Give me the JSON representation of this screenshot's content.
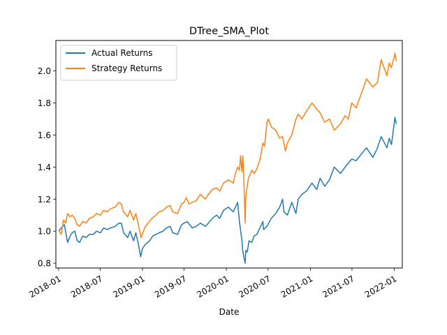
{
  "chart_data": {
    "type": "line",
    "title": "DTree_SMA_Plot",
    "xlabel": "Date",
    "ylabel": "",
    "x_type": "date",
    "xlim": [
      "2017-12-20",
      "2022-02-05"
    ],
    "ylim": [
      0.77,
      2.19
    ],
    "x_ticks": [
      "2018-01-01",
      "2018-07-01",
      "2019-01-01",
      "2019-07-01",
      "2020-01-01",
      "2020-07-01",
      "2021-01-01",
      "2021-07-01",
      "2022-01-01"
    ],
    "x_tick_labels": [
      "2018-01",
      "2018-07",
      "2019-01",
      "2019-07",
      "2020-01",
      "2020-07",
      "2021-01",
      "2021-07",
      "2022-01"
    ],
    "y_ticks": [
      0.8,
      1.0,
      1.2,
      1.4,
      1.6,
      1.8,
      2.0
    ],
    "y_tick_labels": [
      "0.8",
      "1.0",
      "1.2",
      "1.4",
      "1.6",
      "1.8",
      "2.0"
    ],
    "grid": false,
    "legend_position": "top-left",
    "series": [
      {
        "name": "Actual Returns",
        "color": "#1f77b4",
        "points": [
          [
            "2018-01-02",
            1.0
          ],
          [
            "2018-01-12",
            1.02
          ],
          [
            "2018-01-26",
            1.04
          ],
          [
            "2018-02-05",
            0.96
          ],
          [
            "2018-02-09",
            0.93
          ],
          [
            "2018-02-20",
            0.97
          ],
          [
            "2018-03-01",
            0.99
          ],
          [
            "2018-03-12",
            1.0
          ],
          [
            "2018-03-23",
            0.94
          ],
          [
            "2018-04-02",
            0.93
          ],
          [
            "2018-04-16",
            0.97
          ],
          [
            "2018-05-01",
            0.96
          ],
          [
            "2018-05-15",
            0.98
          ],
          [
            "2018-06-01",
            0.98
          ],
          [
            "2018-06-15",
            1.0
          ],
          [
            "2018-07-02",
            0.99
          ],
          [
            "2018-07-16",
            1.02
          ],
          [
            "2018-08-01",
            1.01
          ],
          [
            "2018-08-15",
            1.02
          ],
          [
            "2018-09-04",
            1.03
          ],
          [
            "2018-09-20",
            1.05
          ],
          [
            "2018-10-01",
            1.05
          ],
          [
            "2018-10-11",
            0.99
          ],
          [
            "2018-10-29",
            0.96
          ],
          [
            "2018-11-08",
            1.0
          ],
          [
            "2018-11-23",
            0.94
          ],
          [
            "2018-12-03",
            0.99
          ],
          [
            "2018-12-14",
            0.92
          ],
          [
            "2018-12-24",
            0.84
          ],
          [
            "2018-12-31",
            0.89
          ],
          [
            "2019-01-15",
            0.92
          ],
          [
            "2019-02-01",
            0.94
          ],
          [
            "2019-02-15",
            0.97
          ],
          [
            "2019-03-01",
            0.98
          ],
          [
            "2019-03-15",
            0.99
          ],
          [
            "2019-04-01",
            1.0
          ],
          [
            "2019-04-15",
            1.02
          ],
          [
            "2019-05-01",
            1.03
          ],
          [
            "2019-05-13",
            0.99
          ],
          [
            "2019-06-03",
            0.98
          ],
          [
            "2019-06-20",
            1.04
          ],
          [
            "2019-07-01",
            1.05
          ],
          [
            "2019-07-15",
            1.06
          ],
          [
            "2019-08-05",
            1.02
          ],
          [
            "2019-08-23",
            1.03
          ],
          [
            "2019-09-10",
            1.05
          ],
          [
            "2019-10-02",
            1.03
          ],
          [
            "2019-10-15",
            1.05
          ],
          [
            "2019-11-01",
            1.08
          ],
          [
            "2019-11-20",
            1.1
          ],
          [
            "2019-12-03",
            1.08
          ],
          [
            "2019-12-20",
            1.13
          ],
          [
            "2020-01-10",
            1.15
          ],
          [
            "2020-01-31",
            1.12
          ],
          [
            "2020-02-19",
            1.18
          ],
          [
            "2020-02-27",
            1.06
          ],
          [
            "2020-03-09",
            0.94
          ],
          [
            "2020-03-12",
            0.88
          ],
          [
            "2020-03-16",
            0.85
          ],
          [
            "2020-03-23",
            0.8
          ],
          [
            "2020-03-26",
            0.88
          ],
          [
            "2020-04-01",
            0.87
          ],
          [
            "2020-04-09",
            0.94
          ],
          [
            "2020-04-21",
            0.93
          ],
          [
            "2020-05-01",
            0.97
          ],
          [
            "2020-05-13",
            0.98
          ],
          [
            "2020-06-08",
            1.06
          ],
          [
            "2020-06-11",
            1.01
          ],
          [
            "2020-06-26",
            1.03
          ],
          [
            "2020-07-15",
            1.08
          ],
          [
            "2020-08-03",
            1.11
          ],
          [
            "2020-08-20",
            1.15
          ],
          [
            "2020-09-02",
            1.2
          ],
          [
            "2020-09-08",
            1.12
          ],
          [
            "2020-09-23",
            1.1
          ],
          [
            "2020-10-12",
            1.18
          ],
          [
            "2020-10-30",
            1.11
          ],
          [
            "2020-11-09",
            1.2
          ],
          [
            "2020-11-25",
            1.23
          ],
          [
            "2020-12-15",
            1.25
          ],
          [
            "2021-01-08",
            1.3
          ],
          [
            "2021-01-29",
            1.26
          ],
          [
            "2021-02-12",
            1.33
          ],
          [
            "2021-03-04",
            1.28
          ],
          [
            "2021-03-25",
            1.32
          ],
          [
            "2021-04-15",
            1.4
          ],
          [
            "2021-05-12",
            1.36
          ],
          [
            "2021-06-01",
            1.4
          ],
          [
            "2021-06-30",
            1.45
          ],
          [
            "2021-07-19",
            1.44
          ],
          [
            "2021-08-16",
            1.49
          ],
          [
            "2021-09-02",
            1.52
          ],
          [
            "2021-09-30",
            1.46
          ],
          [
            "2021-10-20",
            1.52
          ],
          [
            "2021-11-05",
            1.59
          ],
          [
            "2021-11-30",
            1.52
          ],
          [
            "2021-12-10",
            1.58
          ],
          [
            "2021-12-20",
            1.54
          ],
          [
            "2022-01-04",
            1.71
          ],
          [
            "2022-01-10",
            1.67
          ]
        ]
      },
      {
        "name": "Strategy Returns",
        "color": "#ff7f0e",
        "points": [
          [
            "2018-01-02",
            1.0
          ],
          [
            "2018-01-08",
            0.99
          ],
          [
            "2018-01-12",
            0.98
          ],
          [
            "2018-01-22",
            1.07
          ],
          [
            "2018-02-01",
            1.05
          ],
          [
            "2018-02-09",
            1.11
          ],
          [
            "2018-02-20",
            1.09
          ],
          [
            "2018-03-01",
            1.1
          ],
          [
            "2018-03-12",
            1.08
          ],
          [
            "2018-03-23",
            1.04
          ],
          [
            "2018-04-02",
            1.03
          ],
          [
            "2018-04-16",
            1.06
          ],
          [
            "2018-05-01",
            1.05
          ],
          [
            "2018-05-15",
            1.08
          ],
          [
            "2018-06-01",
            1.09
          ],
          [
            "2018-06-15",
            1.11
          ],
          [
            "2018-07-02",
            1.1
          ],
          [
            "2018-07-16",
            1.13
          ],
          [
            "2018-08-01",
            1.12
          ],
          [
            "2018-08-15",
            1.14
          ],
          [
            "2018-09-04",
            1.15
          ],
          [
            "2018-09-20",
            1.18
          ],
          [
            "2018-10-01",
            1.17
          ],
          [
            "2018-10-11",
            1.12
          ],
          [
            "2018-10-29",
            1.09
          ],
          [
            "2018-11-08",
            1.13
          ],
          [
            "2018-11-23",
            1.07
          ],
          [
            "2018-12-03",
            1.11
          ],
          [
            "2018-12-14",
            1.04
          ],
          [
            "2018-12-26",
            0.96
          ],
          [
            "2019-01-10",
            1.02
          ],
          [
            "2019-01-25",
            1.05
          ],
          [
            "2019-02-11",
            1.08
          ],
          [
            "2019-02-28",
            1.1
          ],
          [
            "2019-03-15",
            1.12
          ],
          [
            "2019-04-01",
            1.13
          ],
          [
            "2019-04-15",
            1.15
          ],
          [
            "2019-05-01",
            1.16
          ],
          [
            "2019-05-13",
            1.12
          ],
          [
            "2019-06-03",
            1.11
          ],
          [
            "2019-06-20",
            1.17
          ],
          [
            "2019-07-01",
            1.18
          ],
          [
            "2019-07-10",
            1.21
          ],
          [
            "2019-07-22",
            1.17
          ],
          [
            "2019-08-05",
            1.18
          ],
          [
            "2019-08-23",
            1.19
          ],
          [
            "2019-09-10",
            1.23
          ],
          [
            "2019-10-02",
            1.2
          ],
          [
            "2019-10-15",
            1.23
          ],
          [
            "2019-11-01",
            1.26
          ],
          [
            "2019-11-20",
            1.27
          ],
          [
            "2019-12-03",
            1.25
          ],
          [
            "2019-12-20",
            1.3
          ],
          [
            "2020-01-10",
            1.32
          ],
          [
            "2020-01-31",
            1.3
          ],
          [
            "2020-02-10",
            1.36
          ],
          [
            "2020-02-19",
            1.4
          ],
          [
            "2020-02-27",
            1.38
          ],
          [
            "2020-03-03",
            1.47
          ],
          [
            "2020-03-09",
            1.37
          ],
          [
            "2020-03-13",
            1.47
          ],
          [
            "2020-03-16",
            1.38
          ],
          [
            "2020-03-19",
            1.24
          ],
          [
            "2020-03-23",
            1.05
          ],
          [
            "2020-03-26",
            1.22
          ],
          [
            "2020-04-06",
            1.33
          ],
          [
            "2020-04-21",
            1.38
          ],
          [
            "2020-05-01",
            1.36
          ],
          [
            "2020-05-13",
            1.39
          ],
          [
            "2020-05-27",
            1.45
          ],
          [
            "2020-06-08",
            1.55
          ],
          [
            "2020-06-15",
            1.53
          ],
          [
            "2020-06-26",
            1.68
          ],
          [
            "2020-07-02",
            1.7
          ],
          [
            "2020-07-15",
            1.65
          ],
          [
            "2020-08-03",
            1.63
          ],
          [
            "2020-08-20",
            1.58
          ],
          [
            "2020-09-02",
            1.59
          ],
          [
            "2020-09-14",
            1.5
          ],
          [
            "2020-09-23",
            1.55
          ],
          [
            "2020-10-12",
            1.6
          ],
          [
            "2020-10-30",
            1.7
          ],
          [
            "2020-11-09",
            1.73
          ],
          [
            "2020-11-25",
            1.7
          ],
          [
            "2020-12-15",
            1.75
          ],
          [
            "2021-01-08",
            1.8
          ],
          [
            "2021-01-29",
            1.76
          ],
          [
            "2021-02-12",
            1.74
          ],
          [
            "2021-03-04",
            1.68
          ],
          [
            "2021-03-25",
            1.7
          ],
          [
            "2021-04-15",
            1.63
          ],
          [
            "2021-05-12",
            1.67
          ],
          [
            "2021-06-01",
            1.72
          ],
          [
            "2021-06-15",
            1.7
          ],
          [
            "2021-06-30",
            1.8
          ],
          [
            "2021-07-19",
            1.77
          ],
          [
            "2021-08-16",
            1.88
          ],
          [
            "2021-09-02",
            1.95
          ],
          [
            "2021-09-30",
            1.9
          ],
          [
            "2021-10-20",
            1.93
          ],
          [
            "2021-11-05",
            2.07
          ],
          [
            "2021-11-30",
            1.97
          ],
          [
            "2021-12-10",
            2.05
          ],
          [
            "2021-12-20",
            2.02
          ],
          [
            "2022-01-04",
            2.11
          ],
          [
            "2022-01-10",
            2.06
          ]
        ]
      }
    ]
  }
}
